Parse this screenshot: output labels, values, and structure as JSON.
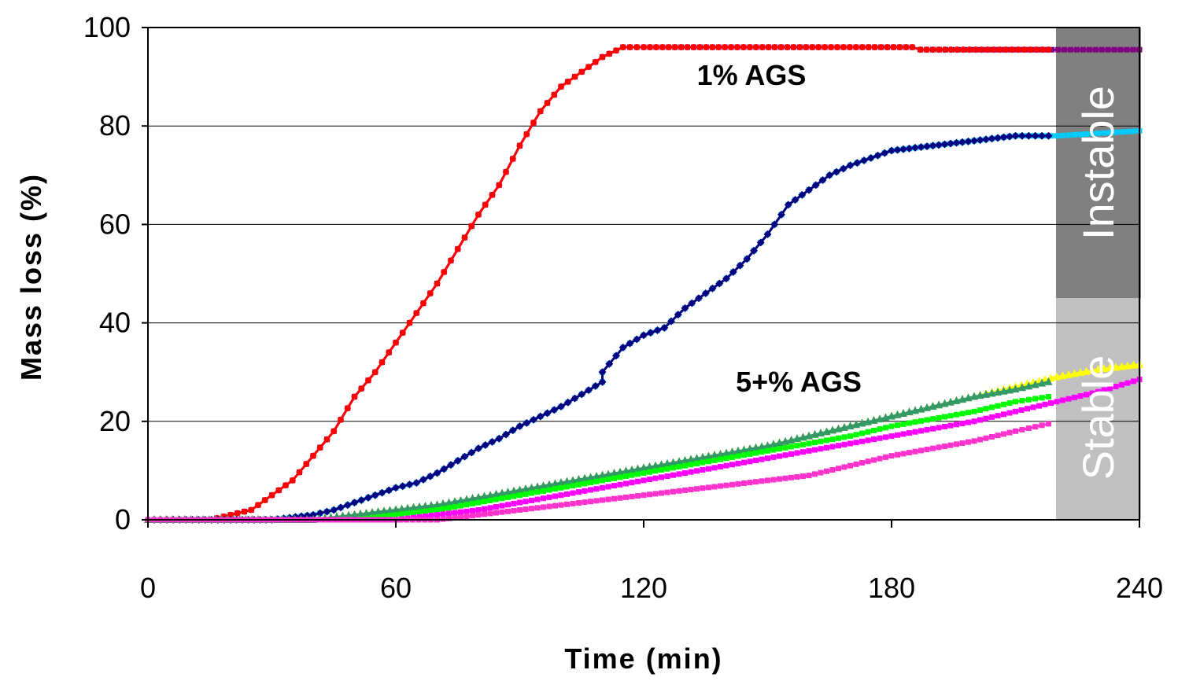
{
  "chart_data": {
    "type": "line",
    "title": "",
    "xlabel": "Time (min)",
    "ylabel": "Mass loss (%)",
    "xlim": [
      0,
      240
    ],
    "ylim": [
      0,
      100
    ],
    "xticks": [
      "0",
      "60",
      "120",
      "180",
      "240"
    ],
    "yticks": [
      "0",
      "20",
      "40",
      "60",
      "80",
      "100"
    ],
    "grid": "horizontal",
    "annotations": [
      "1% AGS",
      "5+% AGS"
    ],
    "bands": [
      {
        "label": "Instable",
        "y_from": 45,
        "y_to": 100,
        "color": "#808080"
      },
      {
        "label": "Stable",
        "y_from": 0,
        "y_to": 45,
        "color": "#c0c0c0"
      }
    ],
    "series": [
      {
        "color": "#800080",
        "marker": "square",
        "points": [
          [
            0,
            0
          ],
          [
            15,
            0
          ],
          [
            20,
            1
          ],
          [
            25,
            2
          ],
          [
            30,
            5
          ],
          [
            35,
            8
          ],
          [
            40,
            13
          ],
          [
            45,
            18
          ],
          [
            50,
            25
          ],
          [
            55,
            30
          ],
          [
            60,
            36
          ],
          [
            65,
            42
          ],
          [
            70,
            48
          ],
          [
            75,
            55
          ],
          [
            80,
            62
          ],
          [
            85,
            68
          ],
          [
            90,
            76
          ],
          [
            95,
            83
          ],
          [
            100,
            88
          ],
          [
            105,
            91
          ],
          [
            110,
            94
          ],
          [
            115,
            96
          ],
          [
            120,
            96
          ],
          [
            185,
            96
          ],
          [
            187,
            95.5
          ],
          [
            240,
            95.5
          ]
        ]
      },
      {
        "color": "#ff0000",
        "marker": "circle",
        "points": [
          [
            0,
            0
          ],
          [
            15,
            0
          ],
          [
            20,
            1
          ],
          [
            25,
            2
          ],
          [
            30,
            5
          ],
          [
            35,
            8
          ],
          [
            40,
            13
          ],
          [
            45,
            18
          ],
          [
            50,
            25
          ],
          [
            55,
            30
          ],
          [
            60,
            36
          ],
          [
            65,
            42
          ],
          [
            70,
            48
          ],
          [
            75,
            55
          ],
          [
            80,
            62
          ],
          [
            85,
            68
          ],
          [
            90,
            76
          ],
          [
            95,
            83
          ],
          [
            100,
            88
          ],
          [
            105,
            91
          ],
          [
            110,
            94
          ],
          [
            115,
            96
          ],
          [
            120,
            96
          ],
          [
            185,
            96
          ],
          [
            187,
            95.5
          ],
          [
            218,
            95.5
          ]
        ]
      },
      {
        "color": "#00ccff",
        "marker": "square",
        "points": [
          [
            0,
            0
          ],
          [
            20,
            0
          ],
          [
            30,
            0
          ],
          [
            40,
            1
          ],
          [
            45,
            2
          ],
          [
            50,
            3.5
          ],
          [
            55,
            5
          ],
          [
            60,
            6.5
          ],
          [
            65,
            7.5
          ],
          [
            70,
            9.5
          ],
          [
            75,
            12
          ],
          [
            80,
            14.5
          ],
          [
            85,
            16.5
          ],
          [
            90,
            19
          ],
          [
            95,
            21
          ],
          [
            100,
            23
          ],
          [
            105,
            25.5
          ],
          [
            110,
            28
          ],
          [
            110,
            30
          ],
          [
            115,
            35
          ],
          [
            120,
            37.5
          ],
          [
            125,
            39
          ],
          [
            130,
            43
          ],
          [
            135,
            46
          ],
          [
            140,
            49
          ],
          [
            145,
            53
          ],
          [
            150,
            58
          ],
          [
            155,
            64
          ],
          [
            160,
            67
          ],
          [
            165,
            70
          ],
          [
            170,
            72
          ],
          [
            175,
            73.5
          ],
          [
            180,
            75
          ],
          [
            190,
            76
          ],
          [
            200,
            77
          ],
          [
            210,
            78
          ],
          [
            220,
            78
          ],
          [
            230,
            78.5
          ],
          [
            240,
            79
          ]
        ]
      },
      {
        "color": "#000080",
        "marker": "diamond",
        "points": [
          [
            0,
            0
          ],
          [
            20,
            0
          ],
          [
            30,
            0
          ],
          [
            40,
            1
          ],
          [
            45,
            2
          ],
          [
            50,
            3.5
          ],
          [
            55,
            5
          ],
          [
            60,
            6.5
          ],
          [
            65,
            7.5
          ],
          [
            70,
            9.5
          ],
          [
            75,
            12
          ],
          [
            80,
            14.5
          ],
          [
            85,
            16.5
          ],
          [
            90,
            19
          ],
          [
            95,
            21
          ],
          [
            100,
            23
          ],
          [
            105,
            25.5
          ],
          [
            110,
            28
          ],
          [
            110,
            30
          ],
          [
            115,
            35
          ],
          [
            120,
            37.5
          ],
          [
            125,
            39
          ],
          [
            130,
            43
          ],
          [
            135,
            46
          ],
          [
            140,
            49
          ],
          [
            145,
            53
          ],
          [
            150,
            58
          ],
          [
            155,
            64
          ],
          [
            160,
            67
          ],
          [
            165,
            70
          ],
          [
            170,
            72
          ],
          [
            175,
            73.5
          ],
          [
            180,
            75
          ],
          [
            190,
            76
          ],
          [
            200,
            77
          ],
          [
            210,
            78
          ],
          [
            218,
            78
          ]
        ]
      },
      {
        "color": "#ffff00",
        "marker": "triangle",
        "points": [
          [
            0,
            0
          ],
          [
            40,
            0
          ],
          [
            50,
            1
          ],
          [
            60,
            2
          ],
          [
            70,
            3
          ],
          [
            80,
            4.5
          ],
          [
            90,
            6
          ],
          [
            100,
            7.5
          ],
          [
            110,
            9
          ],
          [
            120,
            10.5
          ],
          [
            130,
            12
          ],
          [
            140,
            13.5
          ],
          [
            150,
            15
          ],
          [
            160,
            17
          ],
          [
            170,
            19
          ],
          [
            180,
            21
          ],
          [
            190,
            23
          ],
          [
            200,
            25
          ],
          [
            210,
            27
          ],
          [
            220,
            29
          ],
          [
            230,
            30.5
          ],
          [
            240,
            31.5
          ]
        ]
      },
      {
        "color": "#339966",
        "marker": "triangle",
        "points": [
          [
            0,
            0
          ],
          [
            40,
            0
          ],
          [
            50,
            1
          ],
          [
            60,
            2
          ],
          [
            70,
            3
          ],
          [
            80,
            4.5
          ],
          [
            90,
            6
          ],
          [
            100,
            7.5
          ],
          [
            110,
            9
          ],
          [
            120,
            10.5
          ],
          [
            130,
            12
          ],
          [
            140,
            13.5
          ],
          [
            150,
            15
          ],
          [
            160,
            17
          ],
          [
            170,
            19
          ],
          [
            180,
            21
          ],
          [
            190,
            23
          ],
          [
            200,
            25
          ],
          [
            210,
            26.5
          ],
          [
            218,
            28
          ]
        ]
      },
      {
        "color": "#00ff00",
        "marker": "square",
        "points": [
          [
            0,
            0
          ],
          [
            50,
            0
          ],
          [
            60,
            1
          ],
          [
            70,
            2
          ],
          [
            80,
            3.5
          ],
          [
            90,
            5
          ],
          [
            100,
            6.5
          ],
          [
            110,
            8
          ],
          [
            120,
            9.5
          ],
          [
            130,
            11
          ],
          [
            140,
            12.5
          ],
          [
            150,
            14
          ],
          [
            160,
            15.5
          ],
          [
            170,
            17
          ],
          [
            180,
            19
          ],
          [
            190,
            20.5
          ],
          [
            200,
            22
          ],
          [
            210,
            24
          ],
          [
            218,
            25
          ]
        ]
      },
      {
        "color": "#ff00ff",
        "marker": "square",
        "points": [
          [
            0,
            0
          ],
          [
            60,
            0
          ],
          [
            70,
            1
          ],
          [
            80,
            2
          ],
          [
            90,
            3.5
          ],
          [
            100,
            5
          ],
          [
            110,
            6.5
          ],
          [
            120,
            8
          ],
          [
            130,
            9.5
          ],
          [
            140,
            11
          ],
          [
            150,
            12.5
          ],
          [
            160,
            14
          ],
          [
            170,
            15.5
          ],
          [
            180,
            17
          ],
          [
            190,
            18.5
          ],
          [
            200,
            20
          ],
          [
            210,
            22
          ],
          [
            220,
            24
          ],
          [
            230,
            26
          ],
          [
            240,
            28.5
          ]
        ]
      },
      {
        "color": "#ff33cc",
        "marker": "square",
        "points": [
          [
            0,
            0
          ],
          [
            70,
            0
          ],
          [
            80,
            1
          ],
          [
            90,
            2
          ],
          [
            100,
            3
          ],
          [
            110,
            4
          ],
          [
            120,
            5
          ],
          [
            130,
            6
          ],
          [
            140,
            7
          ],
          [
            150,
            8
          ],
          [
            160,
            9
          ],
          [
            170,
            11
          ],
          [
            180,
            13
          ],
          [
            190,
            14.5
          ],
          [
            200,
            16
          ],
          [
            210,
            18
          ],
          [
            218,
            19.5
          ]
        ]
      }
    ]
  }
}
